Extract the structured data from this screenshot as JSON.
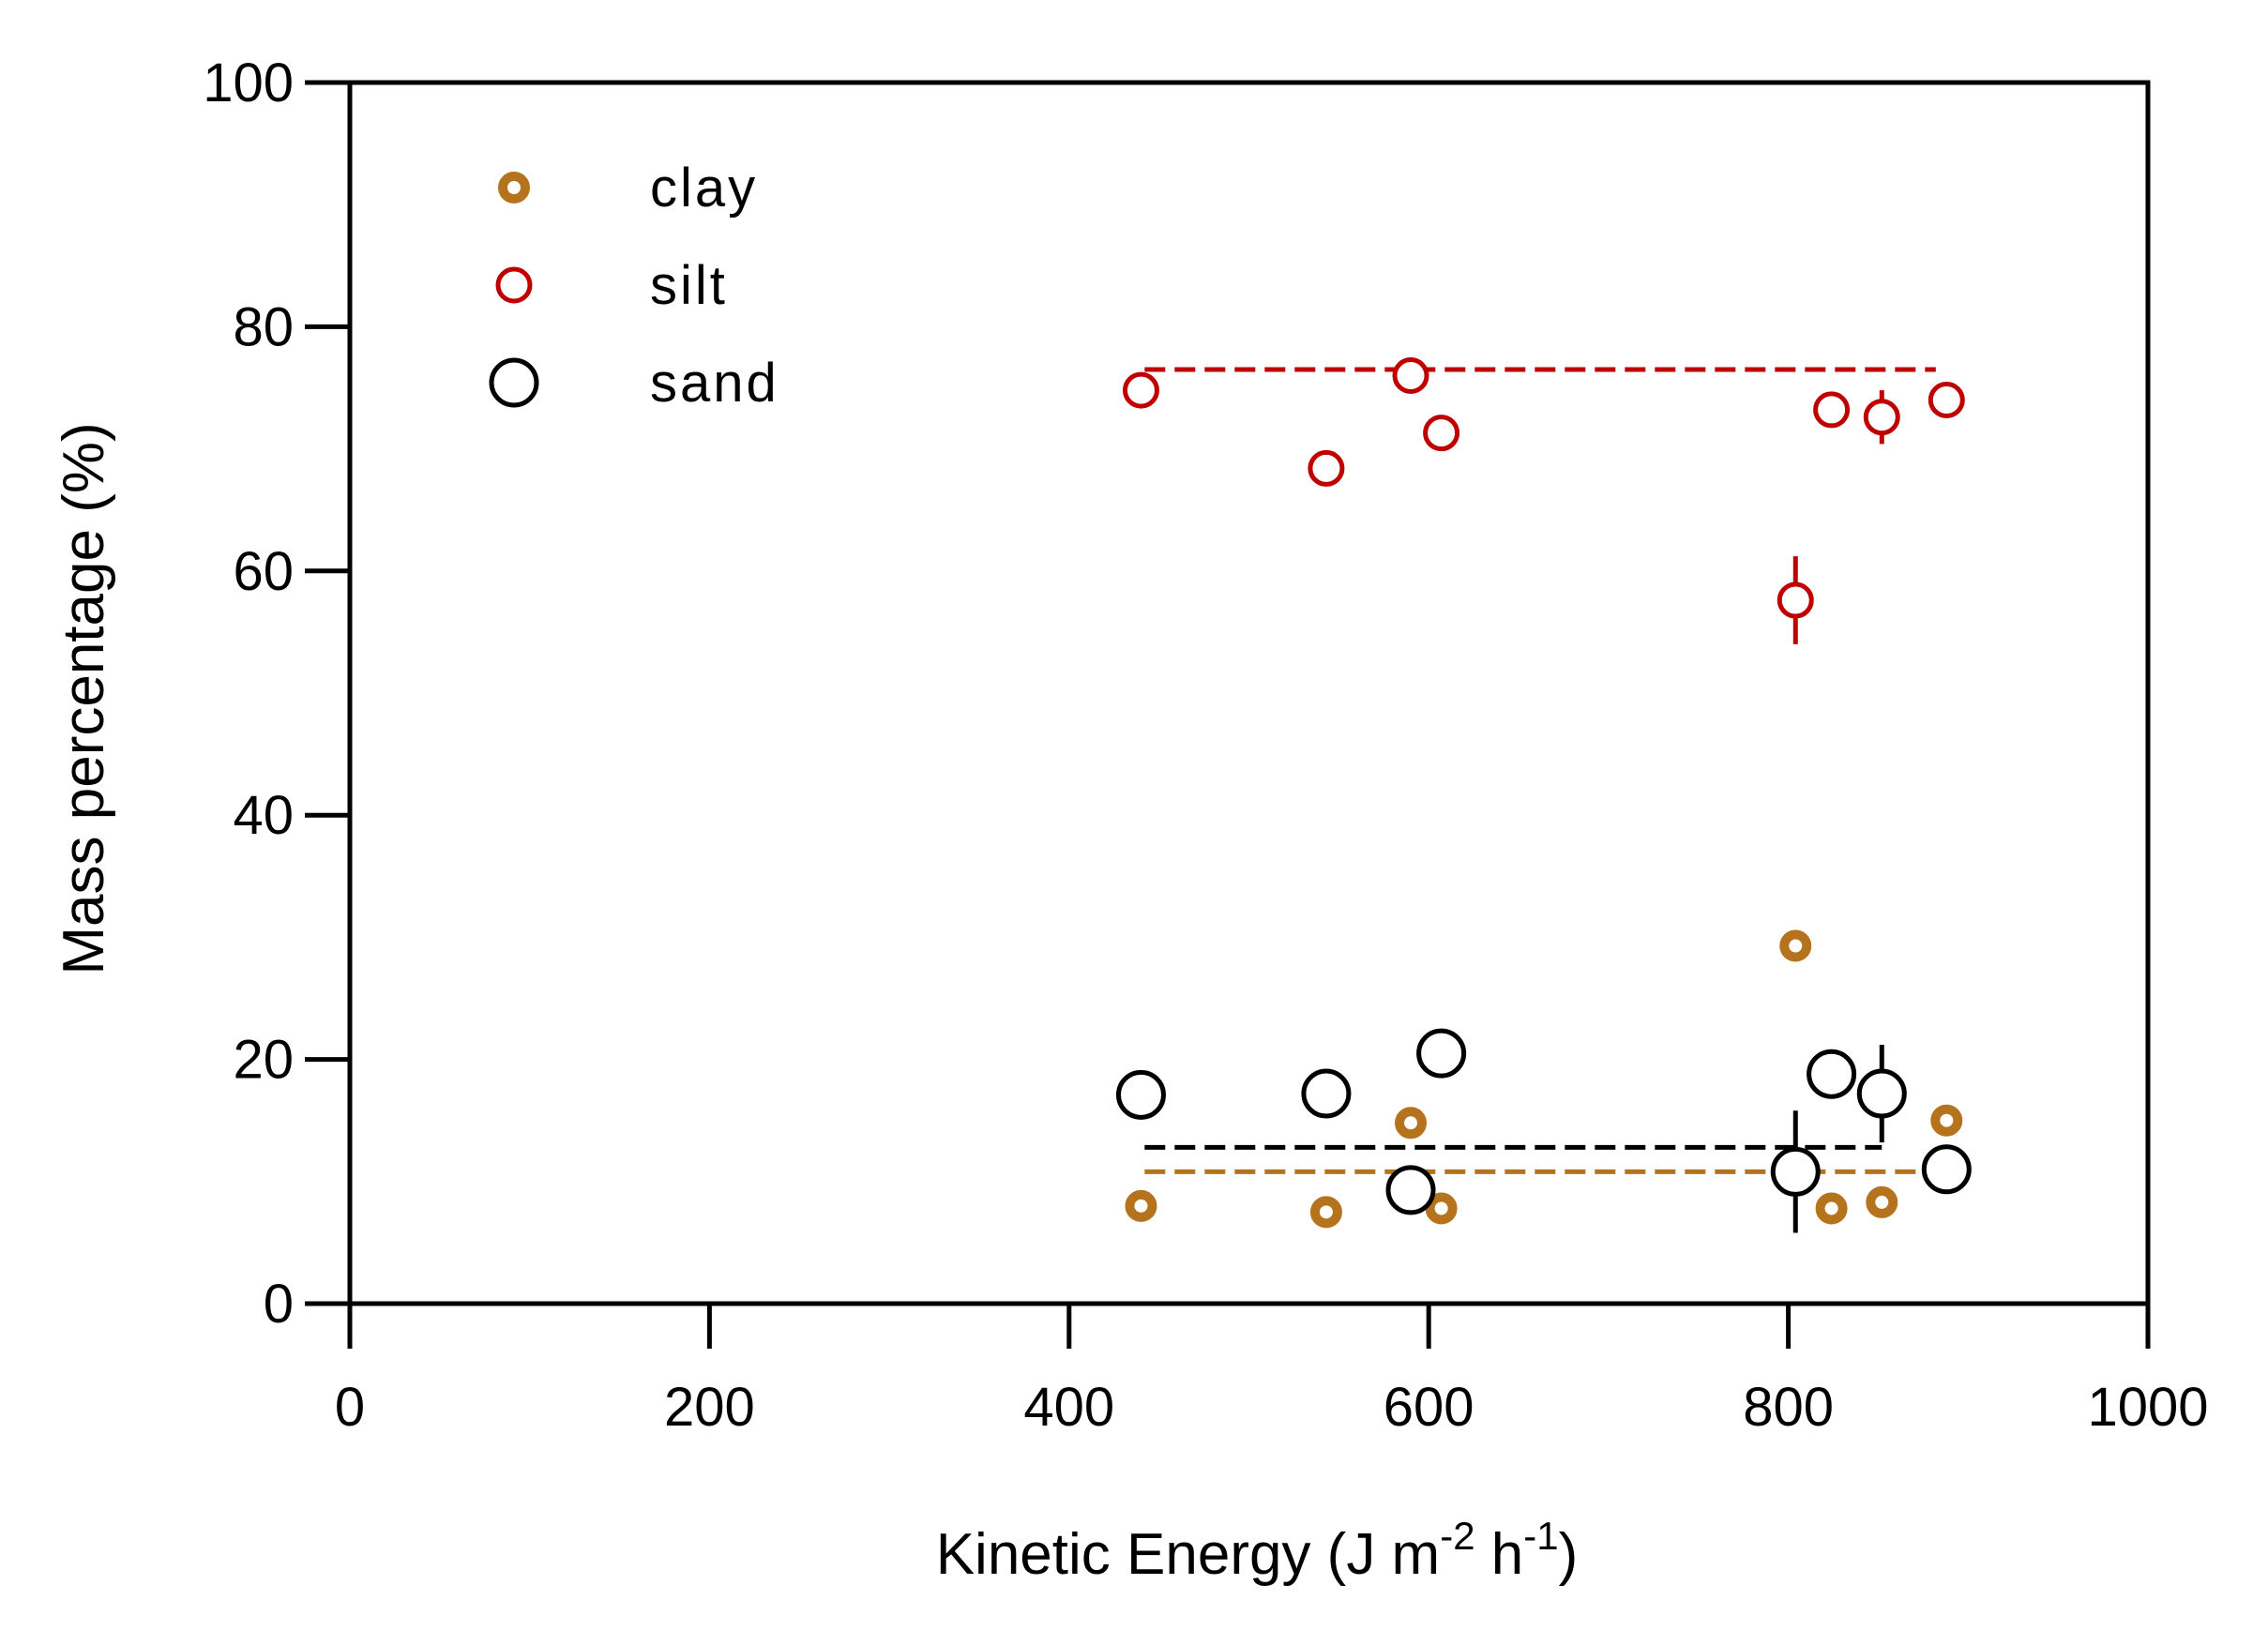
{
  "chart_data": {
    "type": "scatter",
    "title": "",
    "xlabel": "Kinetic Energy (J m",
    "xlabel_sup1": "-2",
    "xlabel_mid": " h",
    "xlabel_sup2": "-1",
    "xlabel_end": ")",
    "ylabel": "Mass percentage (%)",
    "xlim": [
      0,
      1000
    ],
    "ylim": [
      0,
      100
    ],
    "xticks": [
      0,
      200,
      400,
      600,
      800,
      1000
    ],
    "yticks": [
      0,
      20,
      40,
      60,
      80,
      100
    ],
    "grid": false,
    "legend_position": "top-left",
    "series": [
      {
        "name": "clay",
        "color": "#B5731E",
        "marker": "ring-dot",
        "x": [
          440,
          543,
          590,
          607,
          804,
          824,
          852,
          888
        ],
        "y": [
          8.0,
          7.5,
          14.8,
          7.8,
          29.3,
          7.8,
          8.3,
          15.0
        ],
        "yerr": [
          0,
          0,
          0,
          0,
          0,
          0,
          0,
          0
        ],
        "mean_line": {
          "x": [
            442,
            882
          ],
          "y": 10.8
        }
      },
      {
        "name": "silt",
        "color": "#C00000",
        "marker": "open-circle",
        "x": [
          440,
          543,
          590,
          607,
          804,
          824,
          852,
          888
        ],
        "y": [
          74.8,
          68.4,
          76.0,
          71.3,
          57.6,
          73.2,
          72.6,
          74.0
        ],
        "yerr": [
          0,
          0,
          0,
          0,
          3.6,
          0,
          2.2,
          0
        ],
        "mean_line": {
          "x": [
            442,
            882
          ],
          "y": 76.5
        }
      },
      {
        "name": "sand",
        "color": "#000000",
        "marker": "open-circle-large",
        "x": [
          440,
          543,
          590,
          607,
          804,
          824,
          852,
          888
        ],
        "y": [
          17.1,
          17.2,
          9.3,
          20.5,
          10.8,
          18.8,
          17.2,
          11.0
        ],
        "yerr": [
          0,
          0,
          0,
          0,
          5.0,
          0,
          4.0,
          0
        ],
        "mean_line": {
          "x": [
            442,
            852
          ],
          "y": 12.8
        }
      }
    ]
  }
}
